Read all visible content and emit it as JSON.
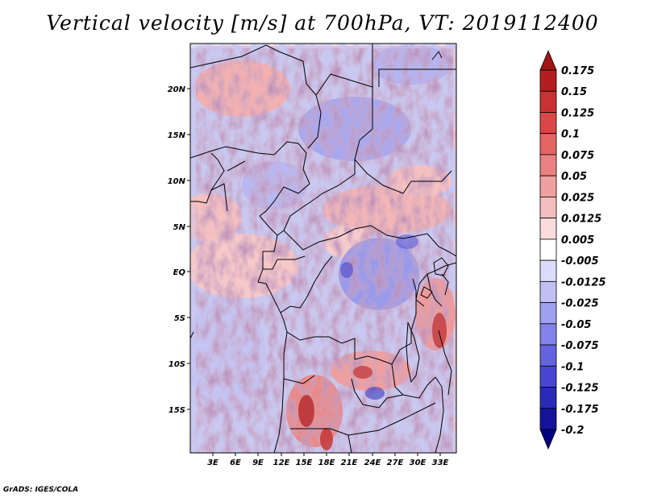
{
  "title": "Vertical velocity [m/s] at 700hPa, VT: 2019112400",
  "credit": "GrADS: IGES/COLA",
  "map": {
    "lat_labels": [
      "20N",
      "15N",
      "10N",
      "5N",
      "EQ",
      "5S",
      "10S",
      "15S"
    ],
    "lon_labels": [
      "3E",
      "6E",
      "9E",
      "12E",
      "15E",
      "18E",
      "21E",
      "24E",
      "27E",
      "30E",
      "33E"
    ]
  },
  "colorbar": {
    "levels": [
      "0.175",
      "0.15",
      "0.125",
      "0.1",
      "0.075",
      "0.05",
      "0.025",
      "0.0125",
      "0.005",
      "-0.005",
      "-0.0125",
      "-0.025",
      "-0.05",
      "-0.075",
      "-0.1",
      "-0.125",
      "-0.175",
      "-0.2"
    ],
    "colors": [
      "#a01414",
      "#b41e1e",
      "#c83232",
      "#dc4646",
      "#e66464",
      "#eb8282",
      "#f0a0a0",
      "#f5bebe",
      "#fadcdc",
      "#ffffff",
      "#dcdcfa",
      "#c0c0f5",
      "#a0a0f0",
      "#8282eb",
      "#6464e1",
      "#4646d2",
      "#2a2ab9",
      "#14149b",
      "#000080"
    ]
  }
}
